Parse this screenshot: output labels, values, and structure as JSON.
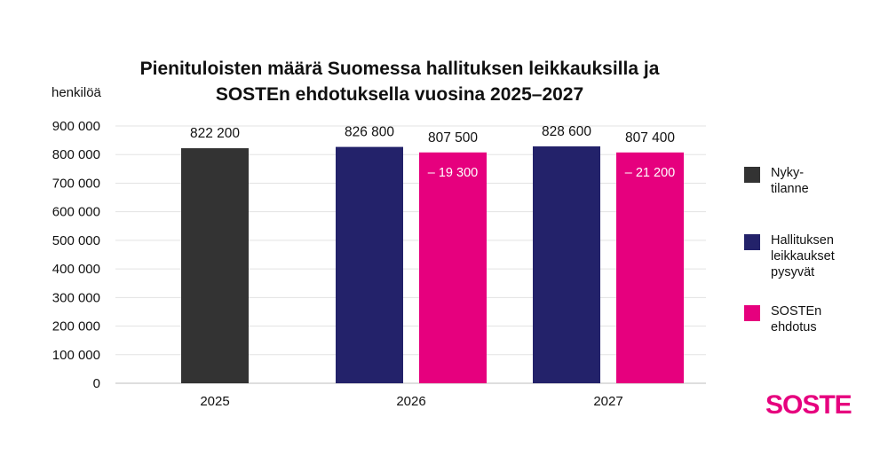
{
  "chart_data": {
    "type": "bar",
    "title": "Pienituloisten määrä Suomessa hallituksen leikkauksilla ja",
    "subtitle": "SOSTEn ehdotuksella vuosina 2025–2027",
    "ylabel": "henkilöä",
    "xlabel": "",
    "ylim": [
      0,
      900000
    ],
    "yticks": [
      0,
      100000,
      200000,
      300000,
      400000,
      500000,
      600000,
      700000,
      800000,
      900000
    ],
    "ytick_labels": [
      "0",
      "100 000",
      "200 000",
      "300 000",
      "400 000",
      "500 000",
      "600 000",
      "700 000",
      "800 000",
      "900 000"
    ],
    "categories": [
      "2025",
      "2026",
      "2027"
    ],
    "grid": true,
    "legend_position": "right",
    "series": [
      {
        "name": "Nyky-\ntilanne",
        "color": "#333333",
        "values": [
          822200,
          null,
          null
        ],
        "labels": [
          "822 200",
          "",
          ""
        ],
        "inner_labels": [
          "",
          "",
          ""
        ]
      },
      {
        "name": "Hallituksen\nleikkaukset\npysyvät",
        "color": "#23226a",
        "values": [
          null,
          826800,
          828600
        ],
        "labels": [
          "",
          "826 800",
          "828 600"
        ],
        "inner_labels": [
          "",
          "",
          ""
        ]
      },
      {
        "name": "SOSTEn\nehdotus",
        "color": "#e6007e",
        "values": [
          null,
          807500,
          807400
        ],
        "labels": [
          "",
          "807 500",
          "807 400"
        ],
        "inner_labels": [
          "",
          "– 19 300",
          "– 21 200"
        ]
      }
    ]
  },
  "logo": {
    "text": "SOSTE",
    "color": "#e6007e"
  }
}
